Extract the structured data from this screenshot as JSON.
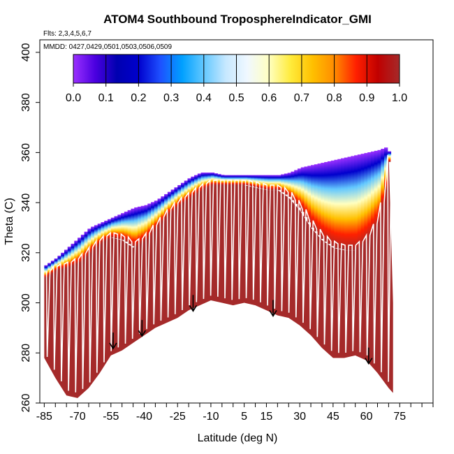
{
  "chart_data": {
    "type": "heatmap",
    "title": "ATOM4 Southbound TroposphereIndicator_GMI",
    "subtitle_flights": "Flts: 2,3,4,5,6,7",
    "subtitle_dates": "MMDD: 0427,0429,0501,0503,0506,0509",
    "xlabel": "Latitude (deg N)",
    "ylabel": "Theta (C)",
    "xlim": [
      -87,
      90
    ],
    "ylim": [
      260,
      405
    ],
    "x_ticks": [
      -85,
      -70,
      -55,
      -40,
      -25,
      -10,
      5,
      15,
      30,
      45,
      60,
      75
    ],
    "x_tick_labels": [
      "-85",
      "-70",
      "-55",
      "-40",
      "-25",
      "-10",
      "5",
      "15",
      "30",
      "45",
      "60",
      "75"
    ],
    "y_ticks": [
      260,
      280,
      300,
      320,
      340,
      360,
      380,
      400
    ],
    "y_tick_labels": [
      "260",
      "280",
      "300",
      "320",
      "340",
      "360",
      "380",
      "400"
    ],
    "colorbar": {
      "range": [
        0,
        1
      ],
      "ticks": [
        0.0,
        0.1,
        0.2,
        0.3,
        0.4,
        0.5,
        0.6,
        0.7,
        0.8,
        0.9,
        1.0
      ],
      "tick_labels": [
        "0.0",
        "0.1",
        "0.2",
        "0.3",
        "0.4",
        "0.5",
        "0.6",
        "0.7",
        "0.8",
        "0.9",
        "1.0"
      ],
      "colors": [
        "#9b30ff",
        "#4b00e0",
        "#0000b0",
        "#0000cd",
        "#1e50ff",
        "#00a0ff",
        "#63c8ff",
        "#c6e8ff",
        "#f0f8ff",
        "#ffffc0",
        "#ffeb3b",
        "#ffc000",
        "#ff8c00",
        "#ff2000",
        "#c00000",
        "#a52a2a"
      ]
    },
    "regime_colors": {
      "troposphere": "#a52a2a",
      "stratosphere": "#9b30ff",
      "flight_track": "#ffffff",
      "arrows": "#000000"
    },
    "tropopause_boundary": {
      "lat": [
        -85,
        -80,
        -75,
        -70,
        -65,
        -60,
        -55,
        -50,
        -45,
        -40,
        -35,
        -30,
        -25,
        -20,
        -15,
        -10,
        -5,
        0,
        5,
        10,
        15,
        20,
        25,
        30,
        35,
        40,
        45,
        50,
        55,
        60,
        65,
        68,
        70,
        72
      ],
      "theta": [
        310,
        313,
        314,
        316,
        320,
        324,
        326,
        325,
        322,
        325,
        330,
        335,
        339,
        342,
        345,
        347,
        347,
        347,
        347,
        346,
        345,
        345,
        342,
        337,
        330,
        325,
        322,
        321,
        321,
        325,
        332,
        345,
        360,
        360
      ]
    },
    "data_top": {
      "lat": [
        -85,
        -80,
        -75,
        -70,
        -65,
        -60,
        -55,
        -50,
        -45,
        -40,
        -35,
        -30,
        -25,
        -20,
        -15,
        -10,
        -5,
        0,
        5,
        10,
        15,
        20,
        25,
        30,
        35,
        40,
        45,
        50,
        55,
        60,
        65,
        68,
        70,
        72
      ],
      "theta": [
        315,
        318,
        322,
        326,
        330,
        332,
        334,
        336,
        338,
        339,
        341,
        344,
        347,
        350,
        352,
        352,
        351,
        351,
        351,
        351,
        351,
        351,
        352,
        354,
        355,
        356,
        357,
        358,
        359,
        360,
        361,
        362,
        360,
        300
      ]
    },
    "data_bottom": {
      "lat": [
        -85,
        -80,
        -75,
        -70,
        -65,
        -60,
        -55,
        -50,
        -45,
        -40,
        -35,
        -30,
        -25,
        -20,
        -15,
        -10,
        -5,
        0,
        5,
        10,
        15,
        20,
        25,
        30,
        35,
        40,
        45,
        50,
        55,
        60,
        65,
        70,
        72
      ],
      "theta": [
        278,
        270,
        263,
        262,
        266,
        272,
        279,
        281,
        284,
        287,
        290,
        292,
        294,
        297,
        299,
        301,
        300,
        299,
        300,
        299,
        297,
        295,
        294,
        291,
        287,
        282,
        278,
        278,
        279,
        277,
        272,
        266,
        264
      ]
    },
    "arrows": {
      "lat": [
        -54,
        -41,
        -18,
        18,
        61
      ],
      "theta": [
        282,
        287,
        297,
        295,
        276
      ]
    }
  }
}
